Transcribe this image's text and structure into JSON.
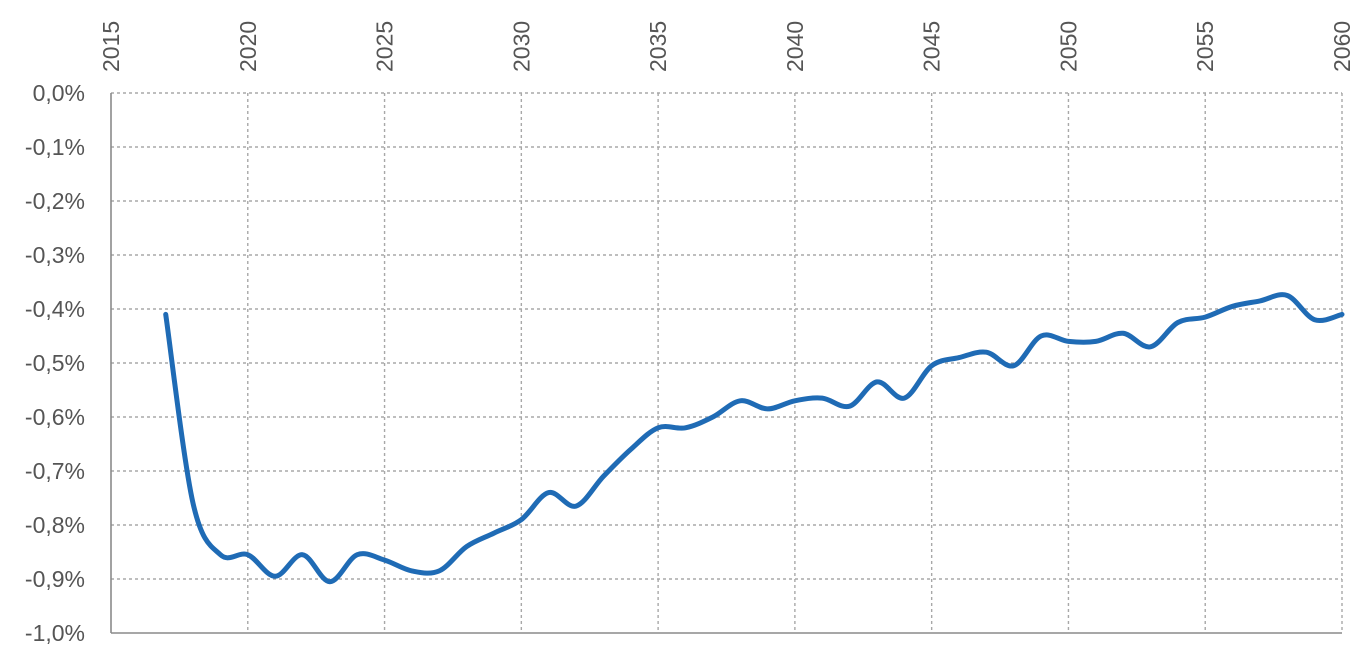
{
  "chart_data": {
    "type": "line",
    "title": "",
    "xlabel": "",
    "ylabel": "",
    "xlim": [
      2015,
      2060
    ],
    "ylim": [
      -1.0,
      0.0
    ],
    "x_ticks": [
      2015,
      2020,
      2025,
      2030,
      2035,
      2040,
      2045,
      2050,
      2055,
      2060
    ],
    "x_tick_labels": [
      "2015",
      "2020",
      "2025",
      "2030",
      "2035",
      "2040",
      "2045",
      "2050",
      "2055",
      "2060"
    ],
    "x_axis_position": "top",
    "y_ticks": [
      0.0,
      -0.1,
      -0.2,
      -0.3,
      -0.4,
      -0.5,
      -0.6,
      -0.7,
      -0.8,
      -0.9,
      -1.0
    ],
    "y_tick_labels": [
      "0,0%",
      "-0,1%",
      "-0,2%",
      "-0,3%",
      "-0,4%",
      "-0,5%",
      "-0,6%",
      "-0,7%",
      "-0,8%",
      "-0,9%",
      "-1,0%"
    ],
    "grid": true,
    "legend": "none",
    "series": [
      {
        "color": "#1f6bb5",
        "x": [
          2017,
          2018,
          2019,
          2020,
          2021,
          2022,
          2023,
          2024,
          2025,
          2026,
          2027,
          2028,
          2029,
          2030,
          2031,
          2032,
          2033,
          2034,
          2035,
          2036,
          2037,
          2038,
          2039,
          2040,
          2041,
          2042,
          2043,
          2044,
          2045,
          2046,
          2047,
          2048,
          2049,
          2050,
          2051,
          2052,
          2053,
          2054,
          2055,
          2056,
          2057,
          2058,
          2059,
          2060
        ],
        "values": [
          -0.41,
          -0.76,
          -0.855,
          -0.855,
          -0.895,
          -0.855,
          -0.905,
          -0.855,
          -0.865,
          -0.885,
          -0.885,
          -0.84,
          -0.815,
          -0.79,
          -0.74,
          -0.765,
          -0.71,
          -0.66,
          -0.62,
          -0.62,
          -0.6,
          -0.57,
          -0.585,
          -0.57,
          -0.565,
          -0.58,
          -0.535,
          -0.565,
          -0.505,
          -0.49,
          -0.48,
          -0.505,
          -0.45,
          -0.46,
          -0.46,
          -0.445,
          -0.47,
          -0.425,
          -0.415,
          -0.395,
          -0.385,
          -0.375,
          -0.42,
          -0.41
        ]
      }
    ]
  }
}
